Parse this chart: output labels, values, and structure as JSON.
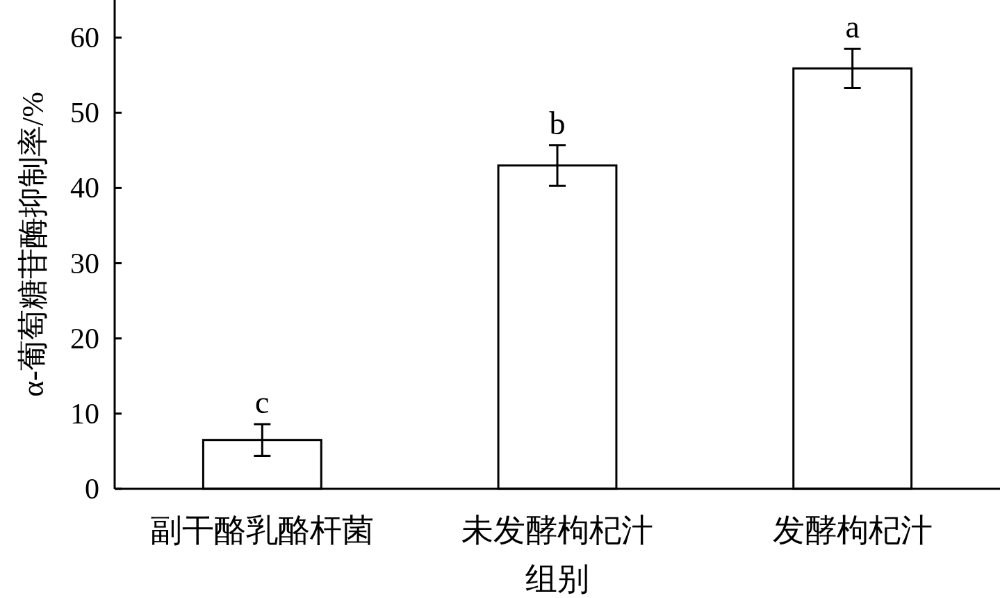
{
  "chart_data": {
    "type": "bar",
    "xlabel": "组别",
    "ylabel": "α-葡萄糖苷酶抑制率/%",
    "categories": [
      "副干酪乳酪杆菌",
      "未发酵枸杞汁",
      "发酵枸杞汁"
    ],
    "values": [
      6.5,
      43.0,
      55.9
    ],
    "errors": [
      2.1,
      2.7,
      2.6
    ],
    "color": "#ffffff",
    "ylim": [
      0,
      65
    ],
    "yticks": [
      0,
      10,
      20,
      30,
      40,
      50,
      60
    ],
    "annotations": [
      {
        "text": "c",
        "x": "副干酪乳酪杆菌",
        "y": 8.6
      },
      {
        "text": "b",
        "x": "未发酵枸杞汁",
        "y": 45.7
      },
      {
        "text": "a",
        "x": "发酵枸杞汁",
        "y": 58.5
      }
    ]
  }
}
